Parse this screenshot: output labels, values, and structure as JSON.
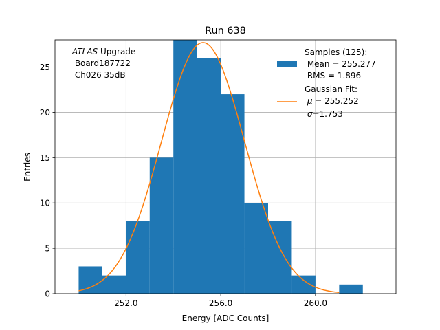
{
  "chart_data": {
    "type": "histogram",
    "title": "Run 638",
    "xlabel": "Energy [ADC Counts]",
    "ylabel": "Entries",
    "xlim": [
      249.0,
      263.4
    ],
    "ylim": [
      0,
      28
    ],
    "grid": true,
    "x_ticks": [
      252.0,
      256.0,
      260.0
    ],
    "x_tick_labels": [
      "252.0",
      "256.0",
      "260.0"
    ],
    "y_ticks": [
      0,
      5,
      10,
      15,
      20,
      25
    ],
    "y_tick_labels": [
      "0",
      "5",
      "10",
      "15",
      "20",
      "25"
    ],
    "bins": [
      {
        "x0": 250,
        "x1": 251,
        "count": 3
      },
      {
        "x0": 251,
        "x1": 252,
        "count": 2
      },
      {
        "x0": 252,
        "x1": 253,
        "count": 8
      },
      {
        "x0": 253,
        "x1": 254,
        "count": 15
      },
      {
        "x0": 254,
        "x1": 255,
        "count": 28
      },
      {
        "x0": 255,
        "x1": 256,
        "count": 26
      },
      {
        "x0": 256,
        "x1": 257,
        "count": 22
      },
      {
        "x0": 257,
        "x1": 258,
        "count": 10
      },
      {
        "x0": 258,
        "x1": 259,
        "count": 8
      },
      {
        "x0": 259,
        "x1": 260,
        "count": 2
      },
      {
        "x0": 260,
        "x1": 261,
        "count": 0
      },
      {
        "x0": 261,
        "x1": 262,
        "count": 1
      }
    ],
    "fit": {
      "type": "gaussian",
      "mu": 255.252,
      "sigma": 1.753,
      "amplitude": 27.7,
      "x_range": [
        250.0,
        261.0
      ]
    },
    "colors": {
      "histogram": "#1f77b4",
      "fit": "#ff7f0e",
      "grid": "#b0b0b0"
    },
    "annotation": {
      "lines": [
        {
          "italic": "ATLAS",
          "rest": " Upgrade"
        },
        {
          "italic": "",
          "rest": " Board187722"
        },
        {
          "italic": "",
          "rest": " Ch026 35dB"
        }
      ]
    },
    "legend": {
      "placement": "upper-right",
      "samples": {
        "title": "Samples (125):",
        "mean_line": " Mean = 255.277",
        "rms_line": " RMS = 1.896"
      },
      "fit": {
        "title": "Gaussian Fit:",
        "mu_symbol": "μ",
        "mu_value": " = 255.252",
        "sigma_symbol": "σ",
        "sigma_value": "=1.753"
      }
    }
  }
}
